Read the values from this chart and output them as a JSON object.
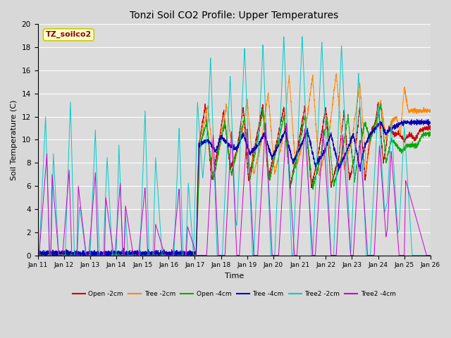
{
  "title": "Tonzi Soil CO2 Profile: Upper Temperatures",
  "xlabel": "Time",
  "ylabel": "Soil Temperature (C)",
  "ylim": [
    0,
    20
  ],
  "fig_bg": "#d8d8d8",
  "plot_bg": "#dcdcdc",
  "annotation_text": "TZ_soilco2",
  "annotation_color": "#8B0000",
  "annotation_bg": "#ffffcc",
  "annotation_edge": "#cccc00",
  "series": [
    {
      "label": "Open -2cm",
      "color": "#cc0000"
    },
    {
      "label": "Tree -2cm",
      "color": "#ff8800"
    },
    {
      "label": "Open -4cm",
      "color": "#00aa00"
    },
    {
      "label": "Tree -4cm",
      "color": "#0000bb"
    },
    {
      "label": "Tree2 -2cm",
      "color": "#00cccc"
    },
    {
      "label": "Tree2 -4cm",
      "color": "#cc00cc"
    }
  ],
  "x_tick_labels": [
    "Jan 11",
    "Jan 12",
    "Jan 13",
    "Jan 14",
    "Jan 15",
    "Jan 16",
    "Jan 17",
    "Jan 18",
    "Jan 19",
    "Jan 20",
    "Jan 21",
    "Jan 22",
    "Jan 23",
    "Jan 24",
    "Jan 25",
    "Jan 26"
  ],
  "yticks": [
    0,
    2,
    4,
    6,
    8,
    10,
    12,
    14,
    16,
    18,
    20
  ]
}
